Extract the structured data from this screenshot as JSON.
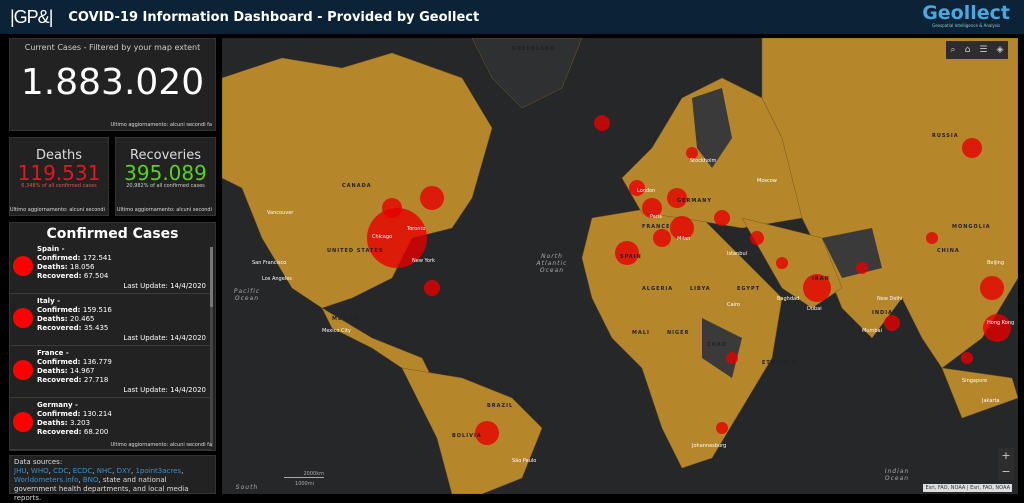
{
  "header": {
    "logo": "|GP&|",
    "title": "COVID-19 Information Dashboard - Provided by Geollect",
    "brand": "Geollect",
    "brand_tagline": "Geospatial Intelligence & Analysis",
    "bg": "#0c2237"
  },
  "current": {
    "label": "Current Cases - Filtered by your map extent",
    "value": "1.883.020",
    "updated": "Ultimo aggiornamento: alcuni secondi fa"
  },
  "deaths": {
    "label": "Deaths",
    "value": "119.531",
    "pct": "6,348% of all confirmed cases",
    "updated": "Ultimo aggiornamento: alcuni secondi",
    "color": "#e8141e"
  },
  "recoveries": {
    "label": "Recoveries",
    "value": "395.089",
    "pct": "20,982% of all confirmed cases",
    "updated": "Ultimo aggiornamento: alcuni secondi",
    "color": "#5ad21e"
  },
  "confirmed": {
    "title": "Confirmed Cases",
    "updated": "Ultimo aggiornamento: alcuni secondi fa",
    "items": [
      {
        "country": "Spain -",
        "confirmed": "172.541",
        "deaths": "18.056",
        "recovered": "67.504",
        "last_update": "Last Update: 14/4/2020"
      },
      {
        "country": "Italy -",
        "confirmed": "159.516",
        "deaths": "20.465",
        "recovered": "35.435",
        "last_update": "Last Update: 14/4/2020"
      },
      {
        "country": "France -",
        "confirmed": "136.779",
        "deaths": "14.967",
        "recovered": "27.718",
        "last_update": "Last Update: 14/4/2020"
      },
      {
        "country": "Germany -",
        "confirmed": "130.214",
        "deaths": "3.203",
        "recovered": "68.200",
        "last_update": ""
      }
    ],
    "labels": {
      "confirmed": "Confirmed: ",
      "deaths": "Deaths: ",
      "recovered": "Recovered: "
    }
  },
  "sources": {
    "prefix": "Data sources:",
    "links": [
      "JHU",
      "WHO",
      "CDC",
      "ECDC",
      "NHC",
      "DXY",
      "1point3acres",
      "Worldometers.info",
      "BNO"
    ],
    "suffix": ", state and national government health departments, and local media reports."
  },
  "map": {
    "tools": [
      "search-icon",
      "home-icon",
      "legend-icon",
      "layers-icon"
    ],
    "zoom_in": "+",
    "zoom_out": "−",
    "attribution": "Esri, FAO, NOAA | Esri, FAO, NOAA",
    "scale": [
      "2000km",
      "1000mi"
    ],
    "land_color": "#b5862a",
    "case_color": "#e60000",
    "labels": [
      "GREENLAND",
      "CANADA",
      "UNITED STATES",
      "MEXICO",
      "RUSSIA",
      "GERMANY",
      "FRANCE",
      "SPAIN",
      "IRAN",
      "INDIA",
      "CHINA",
      "MONGOLIA",
      "BRAZIL",
      "MALI",
      "NIGER",
      "CHAD",
      "ETHIOPIA",
      "BOLIVIA",
      "ALGERIA",
      "LIBYA",
      "EGYPT"
    ],
    "places": [
      "Vancouver",
      "San Francisco",
      "Los Angeles",
      "Chicago",
      "Toronto",
      "New York",
      "Mexico City",
      "London",
      "Paris",
      "Milan",
      "Stockholm",
      "Moscow",
      "Istanbul",
      "Baghdad",
      "Cairo",
      "Dubai",
      "New Delhi",
      "Mumbai",
      "Singapore",
      "Beijing",
      "Hong Kong",
      "Jakarta",
      "São Paulo",
      "Johannesburg"
    ],
    "oceans": [
      "North Atlantic Ocean",
      "Pacific Ocean",
      "Indian Ocean",
      "South"
    ]
  }
}
